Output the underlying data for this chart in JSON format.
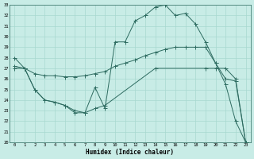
{
  "xlabel": "Humidex (Indice chaleur)",
  "bg_color": "#c8ece6",
  "grid_color": "#a8d8d0",
  "line_color": "#2d6b60",
  "ylim": [
    20,
    33
  ],
  "yticks": [
    20,
    21,
    22,
    23,
    24,
    25,
    26,
    27,
    28,
    29,
    30,
    31,
    32,
    33
  ],
  "x_ticks": [
    0,
    1,
    2,
    3,
    4,
    5,
    6,
    7,
    8,
    9,
    10,
    11,
    12,
    13,
    14,
    15,
    16,
    17,
    18,
    19,
    20,
    21,
    22,
    23
  ],
  "line1_x": [
    0,
    1,
    2,
    3,
    4,
    5,
    6,
    7,
    8,
    9,
    10,
    11,
    12,
    13,
    14,
    15,
    16,
    17,
    18,
    19,
    20,
    21,
    22,
    23
  ],
  "line1_y": [
    28.0,
    27.0,
    25.0,
    24.0,
    23.8,
    23.5,
    22.8,
    22.8,
    25.2,
    23.2,
    29.5,
    29.5,
    31.5,
    32.0,
    32.8,
    33.0,
    32.0,
    32.2,
    31.2,
    29.5,
    27.5,
    25.5,
    22.0,
    20.0
  ],
  "line2_x": [
    0,
    1,
    2,
    3,
    4,
    5,
    6,
    7,
    8,
    9,
    10,
    11,
    12,
    13,
    14,
    15,
    16,
    17,
    18,
    19,
    20,
    21,
    22,
    23
  ],
  "line2_y": [
    27.2,
    27.0,
    26.5,
    26.3,
    26.3,
    26.2,
    26.2,
    26.3,
    26.5,
    26.7,
    27.2,
    27.5,
    27.8,
    28.2,
    28.5,
    28.8,
    29.0,
    29.0,
    29.0,
    29.0,
    27.5,
    26.0,
    25.8,
    20.0
  ],
  "line3_x": [
    0,
    1,
    2,
    3,
    4,
    5,
    6,
    7,
    8,
    9,
    14,
    19,
    20,
    21,
    22,
    23
  ],
  "line3_y": [
    27.0,
    27.0,
    25.0,
    24.0,
    23.8,
    23.5,
    23.0,
    22.8,
    23.2,
    23.5,
    27.0,
    27.0,
    27.0,
    27.0,
    26.0,
    20.0
  ]
}
